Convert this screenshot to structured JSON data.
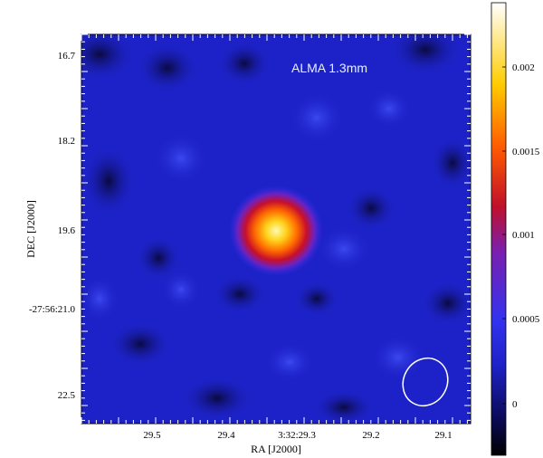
{
  "image": {
    "inset_label": "ALMA 1.3mm",
    "x_axis": {
      "label": "RA [J2000]",
      "ticks": [
        "29.5",
        "29.4",
        "3:32:29.3",
        "29.2",
        "29.1"
      ]
    },
    "y_axis": {
      "label": "DEC [J2000]",
      "ticks": [
        "16.7",
        "18.2",
        "19.6",
        "-27:56:21.0",
        "22.5"
      ]
    },
    "colorbar": {
      "ticks": [
        "0.002",
        "0.0015",
        "0.001",
        "0.0005",
        "0"
      ],
      "colormap": [
        "#000000",
        "#1a1a8c",
        "#2233dd",
        "#7a1fb0",
        "#d01020",
        "#ff6a00",
        "#ffd400",
        "#ffffff"
      ]
    },
    "colors": {
      "background_blue": "#1d22c8",
      "source_core": "#fff27a",
      "beam_ellipse": "#ffffff"
    }
  }
}
